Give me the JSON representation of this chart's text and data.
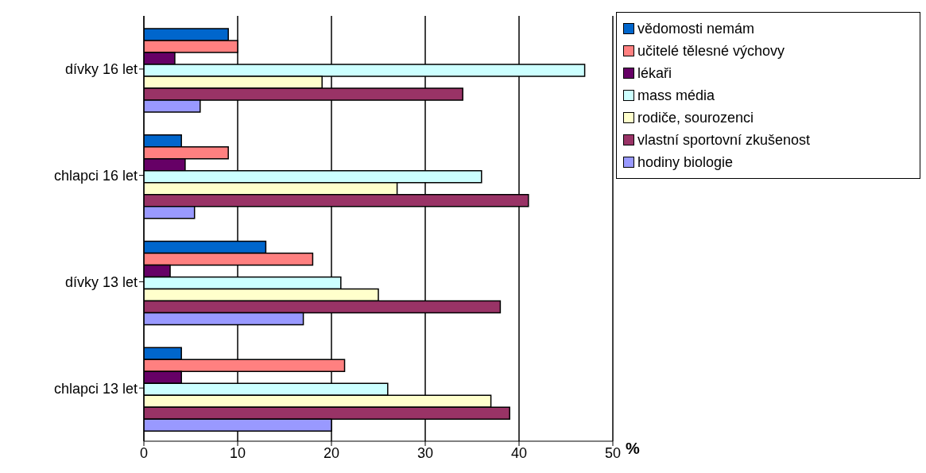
{
  "chart_data": {
    "type": "bar",
    "orientation": "horizontal",
    "xlabel": "%",
    "categories": [
      "dívky 16 let",
      "chlapci 16 let",
      "dívky 13 let",
      "chlapci 13 let"
    ],
    "series": [
      {
        "name": "vědomosti nemám",
        "color": "#0066cc",
        "values": [
          9,
          4,
          13,
          4
        ]
      },
      {
        "name": "učitelé tělesné výchovy",
        "color": "#ff8080",
        "values": [
          10,
          9,
          18,
          21.4
        ]
      },
      {
        "name": "lékaři",
        "color": "#660066",
        "values": [
          3.3,
          4.4,
          2.8,
          4
        ]
      },
      {
        "name": "mass média",
        "color": "#ccffff",
        "values": [
          47,
          36,
          21,
          26
        ]
      },
      {
        "name": "rodiče, sourozenci",
        "color": "#ffffcc",
        "values": [
          19,
          27,
          25,
          37
        ]
      },
      {
        "name": "vlastní sportovní zkušenost",
        "color": "#993366",
        "values": [
          34,
          41,
          38,
          39
        ]
      },
      {
        "name": "hodiny biologie",
        "color": "#9999ff",
        "values": [
          6,
          5.4,
          17,
          20
        ]
      }
    ],
    "xlim": [
      0,
      50
    ],
    "xticks": [
      0,
      10,
      20,
      30,
      40,
      50
    ],
    "grid": "x",
    "legend": "top right"
  }
}
